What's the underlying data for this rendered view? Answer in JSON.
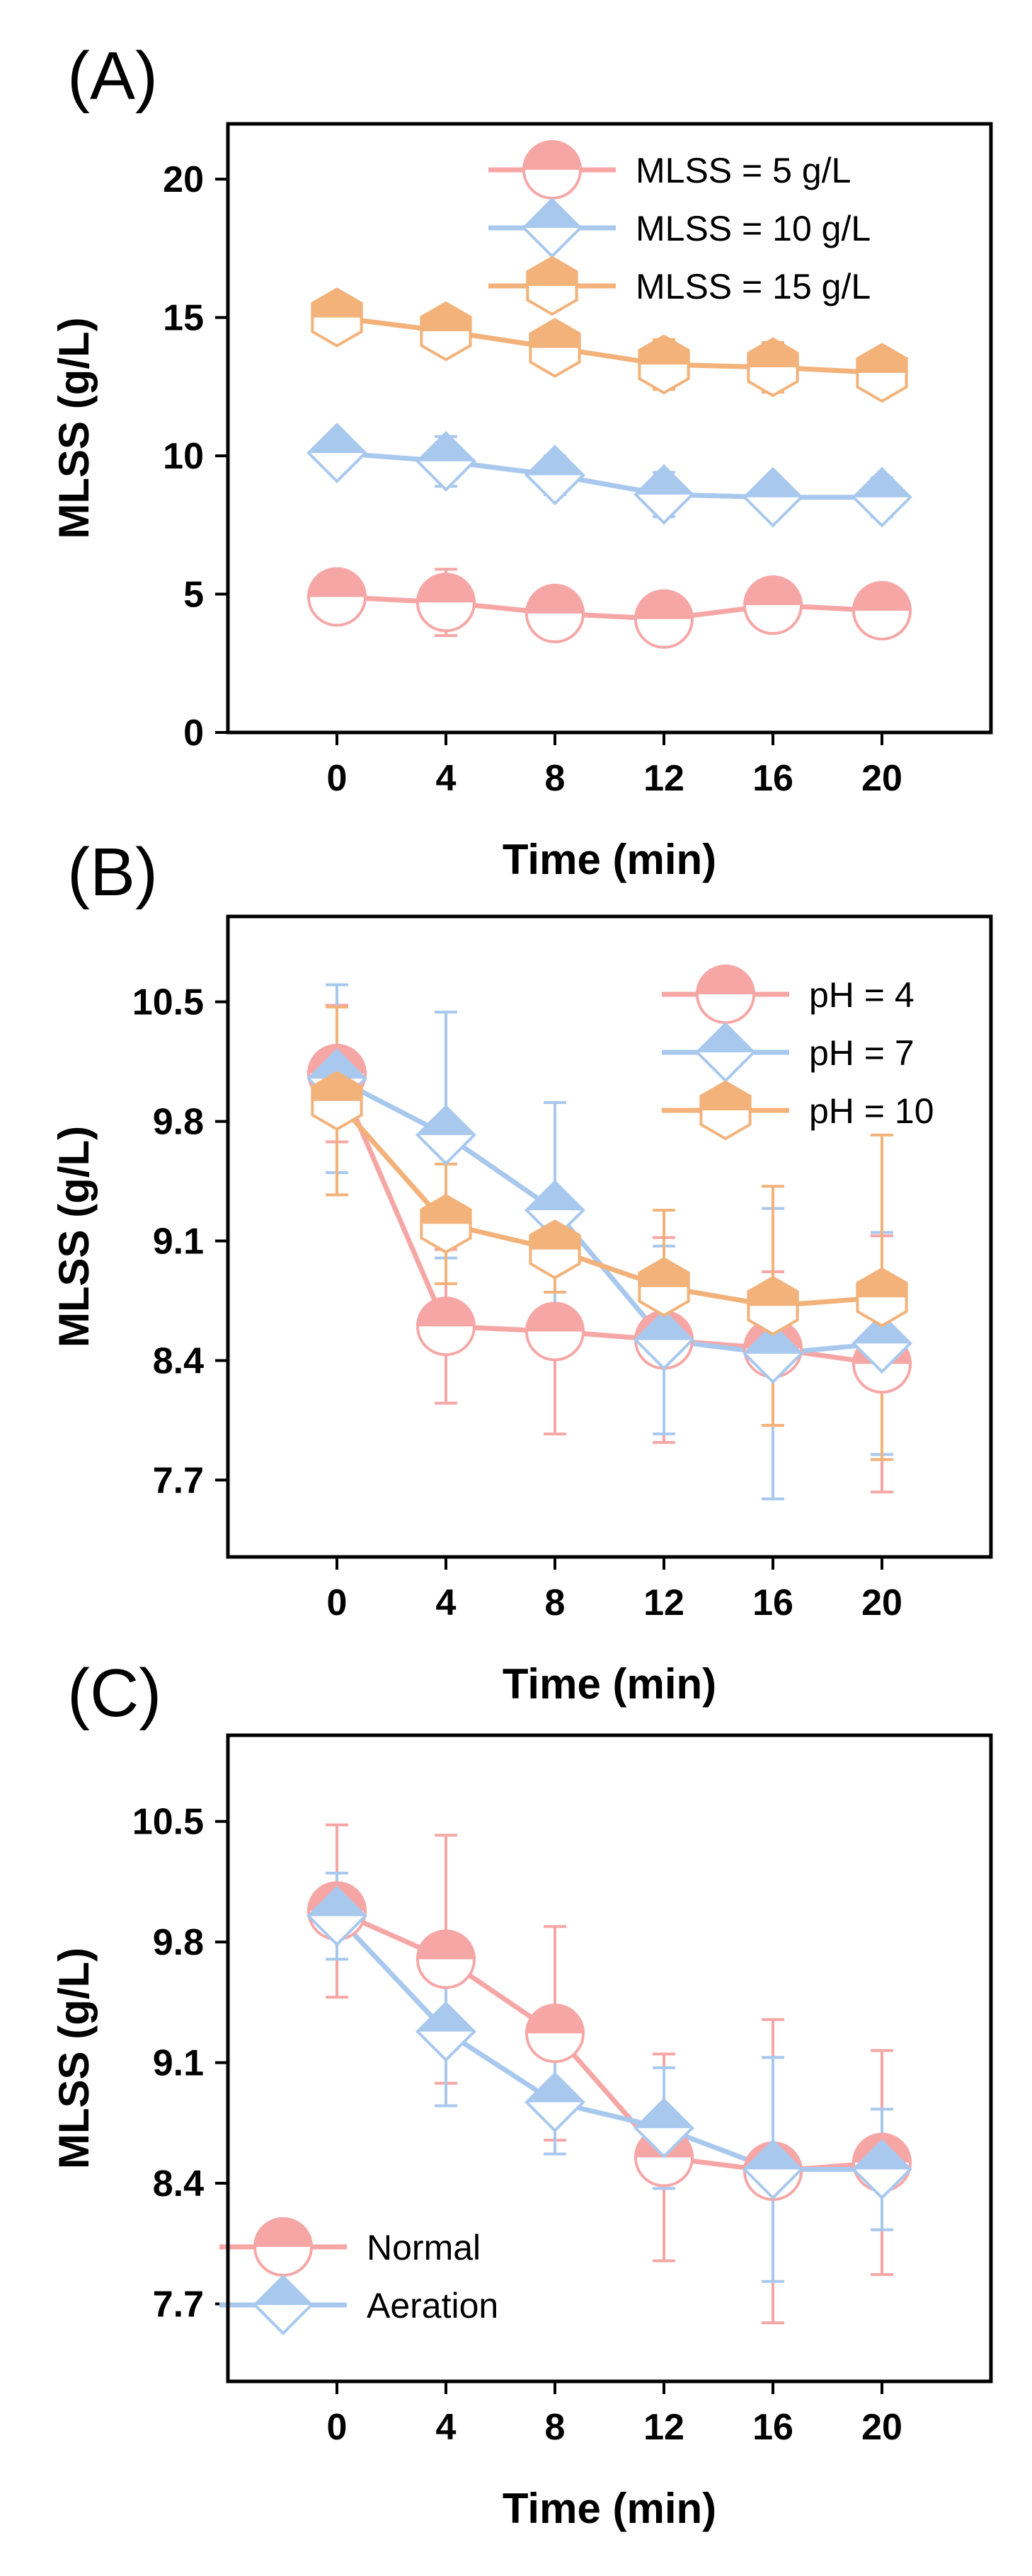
{
  "chart_data": [
    {
      "panel_label": "(A)",
      "type": "line",
      "xlabel": "Time (min)",
      "ylabel": "MLSS (g/L)",
      "xlim": [
        -4,
        24
      ],
      "ylim": [
        0,
        22
      ],
      "xticks": [
        0,
        4,
        8,
        12,
        16,
        20
      ],
      "xtick_labels": [
        "0",
        "4",
        "8",
        "12",
        "16",
        "20"
      ],
      "yticks": [
        0,
        5,
        10,
        15,
        20
      ],
      "ytick_labels": [
        "0",
        "5",
        "10",
        "15",
        "20"
      ],
      "legend_position": "top-right",
      "x": [
        0,
        4,
        8,
        12,
        16,
        20
      ],
      "series": [
        {
          "name": "MLSS = 5 g/L",
          "marker": "circle",
          "color": "#f7a6a6",
          "values": [
            4.9,
            4.7,
            4.3,
            4.1,
            4.6,
            4.4
          ],
          "errors": [
            0.8,
            1.2,
            0.8,
            0.9,
            0.5,
            0.9
          ]
        },
        {
          "name": "MLSS = 10 g/L",
          "marker": "diamond",
          "color": "#a8c8ee",
          "values": [
            10.1,
            9.8,
            9.3,
            8.6,
            8.5,
            8.5
          ],
          "errors": [
            0.6,
            0.9,
            0.7,
            0.8,
            0.4,
            0.7
          ]
        },
        {
          "name": "MLSS = 15 g/L",
          "marker": "hexagon",
          "color": "#f2b27a",
          "values": [
            15.0,
            14.5,
            13.9,
            13.3,
            13.2,
            13.0
          ],
          "errors": [
            0.5,
            0.8,
            0.7,
            0.9,
            0.9,
            0.6
          ]
        }
      ]
    },
    {
      "panel_label": "(B)",
      "type": "line",
      "xlabel": "Time (min)",
      "ylabel": "MLSS (g/L)",
      "xlim": [
        -4,
        24
      ],
      "ylim": [
        7.25,
        11.0
      ],
      "xticks": [
        0,
        4,
        8,
        12,
        16,
        20
      ],
      "xtick_labels": [
        "0",
        "4",
        "8",
        "12",
        "16",
        "20"
      ],
      "yticks": [
        7.7,
        8.4,
        9.1,
        9.8,
        10.5
      ],
      "ytick_labels": [
        "7.7",
        "8.4",
        "9.1",
        "9.8",
        "10.5"
      ],
      "legend_position": "top-right",
      "x": [
        0,
        4,
        8,
        12,
        16,
        20
      ],
      "series": [
        {
          "name": "pH = 4",
          "marker": "circle",
          "color": "#f7a6a6",
          "values": [
            10.08,
            8.6,
            8.57,
            8.52,
            8.47,
            8.38
          ],
          "errors": [
            0.4,
            0.45,
            0.6,
            0.6,
            0.45,
            0.75
          ]
        },
        {
          "name": "pH = 7",
          "marker": "diamond",
          "color": "#a8c8ee",
          "values": [
            10.05,
            9.72,
            9.28,
            8.52,
            8.44,
            8.5
          ],
          "errors": [
            0.55,
            0.72,
            0.63,
            0.55,
            0.85,
            0.65
          ]
        },
        {
          "name": "pH = 10",
          "marker": "hexagon",
          "color": "#f2b27a",
          "values": [
            9.92,
            9.2,
            9.05,
            8.83,
            8.72,
            8.77
          ],
          "errors": [
            0.55,
            0.35,
            0.25,
            0.45,
            0.7,
            0.95
          ]
        }
      ]
    },
    {
      "panel_label": "(C)",
      "type": "line",
      "xlabel": "Time (min)",
      "ylabel": "MLSS (g/L)",
      "xlim": [
        -4,
        24
      ],
      "ylim": [
        7.25,
        11.0
      ],
      "xticks": [
        0,
        4,
        8,
        12,
        16,
        20
      ],
      "xtick_labels": [
        "0",
        "4",
        "8",
        "12",
        "16",
        "20"
      ],
      "yticks": [
        7.7,
        8.4,
        9.1,
        9.8,
        10.5
      ],
      "ytick_labels": [
        "7.7",
        "8.4",
        "9.1",
        "9.8",
        "10.5"
      ],
      "legend_position": "bottom-left",
      "x": [
        0,
        4,
        8,
        12,
        16,
        20
      ],
      "series": [
        {
          "name": "Normal",
          "marker": "circle",
          "color": "#f7a6a6",
          "values": [
            9.98,
            9.7,
            9.27,
            8.55,
            8.47,
            8.52
          ],
          "errors": [
            0.5,
            0.72,
            0.62,
            0.6,
            0.88,
            0.65
          ]
        },
        {
          "name": "Aeration",
          "marker": "diamond",
          "color": "#a8c8ee",
          "values": [
            9.95,
            9.28,
            8.87,
            8.72,
            8.48,
            8.48
          ],
          "errors": [
            0.25,
            0.43,
            0.3,
            0.35,
            0.65,
            0.35
          ]
        }
      ]
    }
  ]
}
